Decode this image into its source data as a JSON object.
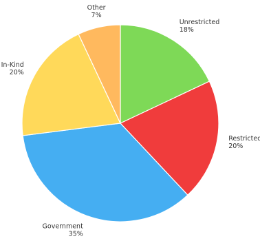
{
  "chart_data": {
    "type": "pie",
    "title": "",
    "start_angle_deg": 0,
    "direction": "clockwise",
    "legend": "none",
    "slices": [
      {
        "label": "Unrestricted",
        "value": 18,
        "value_label": "18%",
        "color": "#7ed957"
      },
      {
        "label": "Restricted",
        "value": 20,
        "value_label": "20%",
        "color": "#f03c3c"
      },
      {
        "label": "Government",
        "value": 35,
        "value_label": "35%",
        "color": "#45aef2"
      },
      {
        "label": "In-Kind",
        "value": 20,
        "value_label": "20%",
        "color": "#ffd95a"
      },
      {
        "label": "Other",
        "value": 7,
        "value_label": "7%",
        "color": "#ffb95e"
      }
    ]
  }
}
